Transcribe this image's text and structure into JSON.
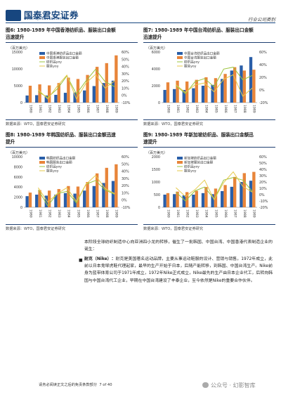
{
  "header": {
    "company": "国泰君安证券",
    "company_en": "GUOTAI JUNAN SECURITIES",
    "report_type": "行业公司类别"
  },
  "figures": {
    "fig6": {
      "title_line1": "图6:   1980-1989 年中国香港纺织品、服装出口金额",
      "title_line2": "迅速提升",
      "source": "数据来源：WTO，国泰君安证券研究"
    },
    "fig7": {
      "title_line1": "图7:   1980-1989 年中国台湾纺织品、服装出口金额",
      "title_line2": "迅速提升",
      "source": "数据来源：WTO，国泰君安证券研究"
    },
    "fig8": {
      "title_line1": "图8:   1980-1989 年韩国纺织品、服装出口金额迅速",
      "title_line2": "提升",
      "source": "数据来源：WTO，国泰君安证券研究"
    },
    "fig9": {
      "title_line1": "图9:   1980-1989 年新加坡纺织品、服装出口金额迅",
      "title_line2": "速提升",
      "source": "数据来源：WTO，国泰君安证券研究"
    }
  },
  "chart_data": [
    {
      "type": "bar",
      "categories": [
        "1980",
        "1981",
        "1982",
        "1983",
        "1984",
        "1985",
        "1986",
        "1987",
        "1988",
        "1989"
      ],
      "unit_label": "（百万美元）",
      "ylim": [
        0,
        15000
      ],
      "yticks": [
        "0",
        "5000",
        "10000",
        "15000"
      ],
      "y2lim": [
        -10,
        60
      ],
      "y2ticks": [
        "-10%",
        "0%",
        "10%",
        "20%",
        "30%",
        "40%",
        "50%",
        "60%"
      ],
      "series": [
        {
          "name": "中国香港纺织品出口金额",
          "color": "#2a5ea8",
          "values": [
            2100,
            2200,
            2100,
            2300,
            2900,
            3000,
            3600,
            4900,
            5800,
            6500
          ]
        },
        {
          "name": "中国香港服装出口金额",
          "color": "#e8853a",
          "values": [
            5000,
            5400,
            5100,
            5800,
            7400,
            7000,
            8200,
            10600,
            11700,
            14000
          ]
        },
        {
          "name": "纺织品yoy",
          "color": "#9bc43c",
          "type": "line",
          "values": [
            null,
            5,
            -3,
            9,
            27,
            2,
            20,
            36,
            19,
            12
          ]
        },
        {
          "name": "服装yoy",
          "color": "#e6c94a",
          "type": "line",
          "values": [
            null,
            8,
            -5,
            13,
            28,
            -5,
            17,
            29,
            10,
            20
          ]
        }
      ]
    },
    {
      "type": "bar",
      "categories": [
        "1980",
        "1981",
        "1982",
        "1983",
        "1984",
        "1985",
        "1986",
        "1987",
        "1988",
        "1989"
      ],
      "unit_label": "（百万美元）",
      "ylim": [
        0,
        6000
      ],
      "yticks": [
        "0",
        "2000",
        "4000",
        "6000"
      ],
      "y2lim": [
        -20,
        60
      ],
      "y2ticks": [
        "-20%",
        "0%",
        "20%",
        "40%",
        "60%"
      ],
      "series": [
        {
          "name": "中国台湾纺织品出口金额",
          "color": "#2a5ea8",
          "values": [
            1500,
            1600,
            1500,
            1700,
            2000,
            2100,
            2800,
            3800,
            4400,
            5400
          ]
        },
        {
          "name": "中国台湾服装出口金额",
          "color": "#e8853a",
          "values": [
            2400,
            2600,
            2500,
            2700,
            3000,
            2900,
            3400,
            4200,
            3800,
            3900
          ]
        },
        {
          "name": "纺织品yoy",
          "color": "#9bc43c",
          "type": "line",
          "values": [
            null,
            7,
            -6,
            13,
            18,
            5,
            33,
            36,
            16,
            23
          ]
        },
        {
          "name": "服装yoy",
          "color": "#e6c94a",
          "type": "line",
          "values": [
            null,
            8,
            -4,
            8,
            11,
            -3,
            17,
            24,
            -10,
            3
          ]
        }
      ]
    },
    {
      "type": "bar",
      "categories": [
        "1980",
        "1981",
        "1982",
        "1983",
        "1984",
        "1985",
        "1986",
        "1987",
        "1988",
        "1989"
      ],
      "unit_label": "（百万美元）",
      "ylim": [
        0,
        10000
      ],
      "yticks": [
        "0",
        "2000",
        "4000",
        "6000",
        "8000",
        "10000"
      ],
      "y2lim": [
        -10,
        60
      ],
      "y2ticks": [
        "-10%",
        "0%",
        "10%",
        "20%",
        "30%",
        "40%",
        "50%",
        "60%"
      ],
      "series": [
        {
          "name": "韩国纺织品出口金额",
          "color": "#2a5ea8",
          "values": [
            2200,
            2500,
            2300,
            2500,
            2800,
            2700,
            3300,
            4200,
            4800,
            5200
          ]
        },
        {
          "name": "韩国服装出口金额",
          "color": "#e8853a",
          "values": [
            2900,
            3400,
            3300,
            3600,
            4200,
            4100,
            5000,
            6700,
            7800,
            8500
          ]
        },
        {
          "name": "纺织品yoy",
          "color": "#9bc43c",
          "type": "line",
          "values": [
            null,
            14,
            -8,
            9,
            12,
            -4,
            22,
            27,
            14,
            8
          ]
        },
        {
          "name": "服装yoy",
          "color": "#e6c94a",
          "type": "line",
          "values": [
            null,
            17,
            -3,
            9,
            17,
            -2,
            22,
            34,
            16,
            9
          ]
        }
      ]
    },
    {
      "type": "bar",
      "categories": [
        "1980",
        "1981",
        "1982",
        "1983",
        "1984",
        "1985",
        "1986",
        "1987",
        "1988",
        "1989"
      ],
      "unit_label": "（百万美元）",
      "ylim": [
        0,
        2000
      ],
      "yticks": [
        "0",
        "500",
        "1000",
        "1500",
        "2000"
      ],
      "y2lim": [
        -20,
        60
      ],
      "y2ticks": [
        "-20%",
        "-10%",
        "0%",
        "10%",
        "20%",
        "30%",
        "40%",
        "50%",
        "60%"
      ],
      "series": [
        {
          "name": "新加坡纺织品出口金额",
          "color": "#2a5ea8",
          "values": [
            500,
            520,
            470,
            500,
            560,
            520,
            640,
            810,
            1000,
            1050
          ]
        },
        {
          "name": "新加坡服装出口金额",
          "color": "#e8853a",
          "values": [
            560,
            620,
            600,
            650,
            800,
            740,
            880,
            1200,
            1350,
            1400
          ]
        },
        {
          "name": "纺织品yoy",
          "color": "#9bc43c",
          "type": "line",
          "values": [
            null,
            4,
            -10,
            6,
            12,
            -7,
            23,
            27,
            23,
            5
          ]
        },
        {
          "name": "服装yoy",
          "color": "#e6c94a",
          "type": "line",
          "values": [
            null,
            11,
            -3,
            8,
            23,
            -8,
            19,
            36,
            13,
            4
          ]
        }
      ]
    }
  ],
  "body": {
    "intro": "本阶段全球纺织制造中心向亚洲四小龙的转移，催生了一批韩国、中国台湾、中国香港代表制造企业的诞生：",
    "bullet_title": "耐克（Nike）：",
    "bullet_text": "耐克是美国著名运动品牌，主要从事运动鞋服的设计、营销与销售，1972年成立，此前以日本鬼塚虎鞋代理起家，最早的生产开始于日本，后随产能转移，到韩国、中国台湾生产。Nike前身为蓝带体育公司于1971年成立，1972年Nike正式成立，Nike最先的生产由日本企业代工，后转向韩国与中国台湾代工企业，早期在中国台湾建设了丰泰企业，至今依然是Nike的重要合作伙伴。"
  },
  "footer": {
    "disclaimer": "请务必阅读正文之后的免责条款部分",
    "page": "7 of 40",
    "watermark": "公众号 · 幻影智库"
  }
}
